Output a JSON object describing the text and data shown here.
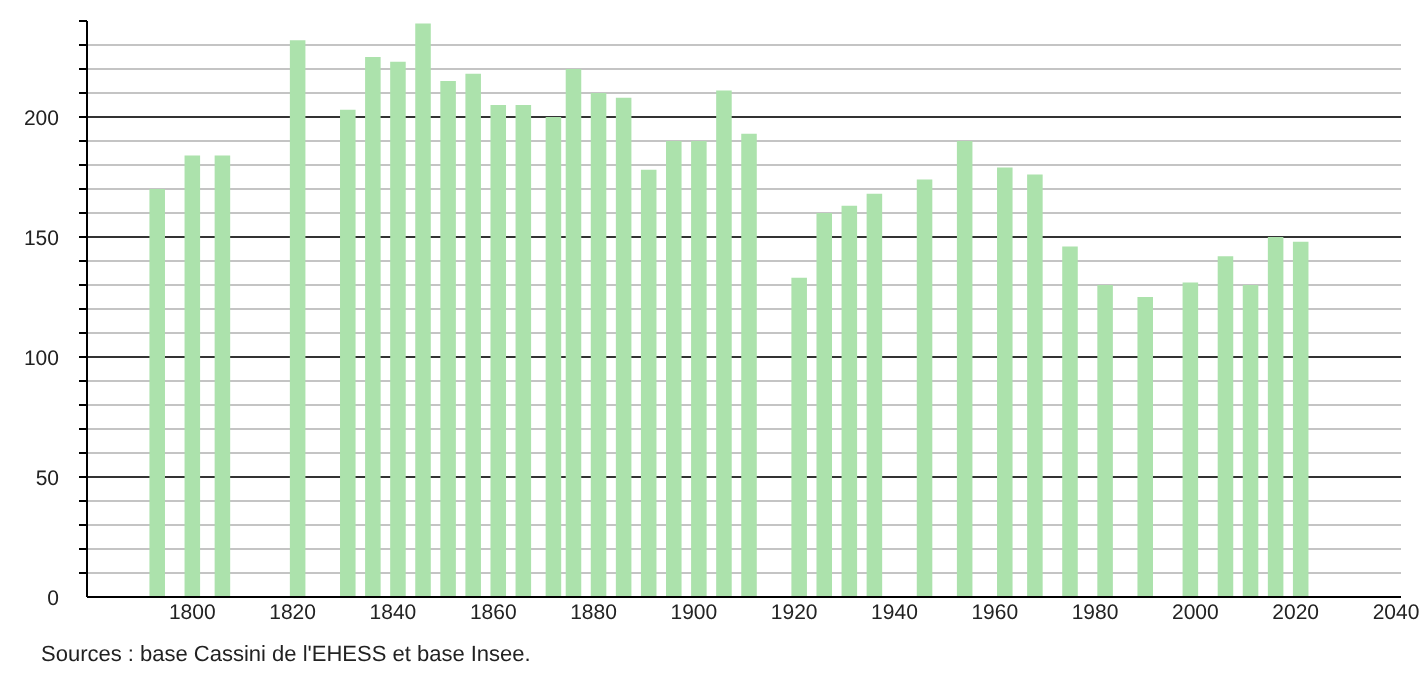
{
  "chart_data": {
    "type": "bar",
    "x": [
      1793,
      1800,
      1806,
      1821,
      1831,
      1836,
      1841,
      1846,
      1851,
      1856,
      1861,
      1866,
      1872,
      1876,
      1881,
      1886,
      1891,
      1896,
      1901,
      1906,
      1911,
      1921,
      1926,
      1931,
      1936,
      1946,
      1954,
      1962,
      1968,
      1975,
      1982,
      1990,
      1999,
      2006,
      2011,
      2016,
      2021
    ],
    "values": [
      170,
      184,
      184,
      232,
      203,
      225,
      223,
      239,
      215,
      218,
      205,
      205,
      200,
      220,
      210,
      208,
      178,
      190,
      190,
      211,
      193,
      133,
      160,
      163,
      168,
      174,
      190,
      179,
      176,
      146,
      130,
      125,
      131,
      142,
      130,
      150,
      148
    ],
    "color": "#ace2ac",
    "xlim": [
      1779,
      2041
    ],
    "xticks": [
      1800,
      1820,
      1840,
      1860,
      1880,
      1900,
      1920,
      1940,
      1960,
      1980,
      2000,
      2020,
      2040
    ],
    "ylim": [
      0,
      240
    ],
    "yticks": [
      0,
      {
        "value": 10,
        "label": null
      },
      {
        "value": 20,
        "label": null
      },
      {
        "value": 30,
        "label": null
      },
      {
        "value": 40,
        "label": null
      },
      50,
      {
        "value": 60,
        "label": null
      },
      {
        "value": 70,
        "label": null
      },
      {
        "value": 80,
        "label": null
      },
      {
        "value": 90,
        "label": null
      },
      100,
      {
        "value": 110,
        "label": null
      },
      {
        "value": 120,
        "label": null
      },
      {
        "value": 130,
        "label": null
      },
      {
        "value": 140,
        "label": null
      },
      150,
      {
        "value": 160,
        "label": null
      },
      {
        "value": 170,
        "label": null
      },
      {
        "value": 180,
        "label": null
      },
      {
        "value": 190,
        "label": null
      },
      200,
      {
        "value": 210,
        "label": null
      },
      {
        "value": 220,
        "label": null
      },
      {
        "value": 230,
        "label": null
      },
      {
        "value": 240,
        "label": null
      }
    ],
    "grid": "y",
    "annotations": [
      "Sources : base Cassini de l'EHESS et base Insee."
    ]
  }
}
